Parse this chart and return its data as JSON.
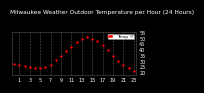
{
  "title": "Milwaukee Weather Outdoor Temperature per Hour (24 Hours)",
  "hours": [
    0,
    1,
    2,
    3,
    4,
    5,
    6,
    7,
    8,
    9,
    10,
    11,
    12,
    13,
    14,
    15,
    16,
    17,
    18,
    19,
    20,
    21,
    22,
    23
  ],
  "temps": [
    28,
    27,
    26,
    25,
    24,
    24,
    25,
    27,
    31,
    35,
    39,
    43,
    47,
    50,
    51,
    50,
    48,
    44,
    40,
    35,
    30,
    27,
    24,
    22
  ],
  "dot_color": "#ff0000",
  "bg_color": "#000000",
  "plot_bg": "#000000",
  "grid_color": "#555555",
  "title_color": "#ffffff",
  "tick_color": "#ffffff",
  "ylim": [
    18,
    56
  ],
  "yticks": [
    20,
    25,
    30,
    35,
    40,
    45,
    50,
    55
  ],
  "xticks": [
    1,
    3,
    5,
    7,
    9,
    11,
    13,
    15,
    17,
    19,
    21,
    23
  ],
  "legend_label": "Temp °F",
  "legend_color": "#ff0000",
  "title_fontsize": 4.2,
  "tick_fontsize": 3.5,
  "dot_size": 3.0
}
